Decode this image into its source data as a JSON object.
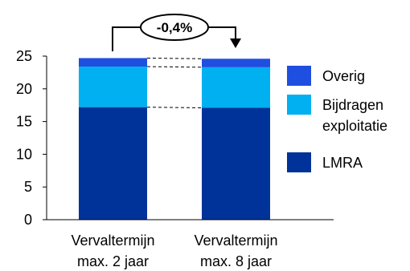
{
  "chart_data": {
    "type": "bar",
    "stacked": true,
    "categories": [
      "Vervaltermijn max. 2 jaar",
      "Vervaltermijn max. 8 jaar"
    ],
    "category_label_lines": [
      [
        "Vervaltermijn",
        "max. 2 jaar"
      ],
      [
        "Vervaltermijn",
        "max. 8 jaar"
      ]
    ],
    "series": [
      {
        "name": "LMRA",
        "values": [
          17.2,
          17.1
        ],
        "color": "#003399"
      },
      {
        "name": "Bijdragen exploitatie",
        "values": [
          6.2,
          6.2
        ],
        "color": "#00b0f0"
      },
      {
        "name": "Overig",
        "values": [
          1.3,
          1.3
        ],
        "color": "#1f4fe0"
      }
    ],
    "legend_order": [
      "Overig",
      "Bijdragen exploitatie",
      "LMRA"
    ],
    "legend_label_lines": {
      "Overig": [
        "Overig"
      ],
      "Bijdragen exploitatie": [
        "Bijdragen",
        "exploitatie"
      ],
      "LMRA": [
        "LMRA"
      ]
    },
    "yticks": [
      0,
      5,
      10,
      15,
      20,
      25
    ],
    "ylim": [
      0,
      25
    ],
    "annotation": "-0,4%",
    "connector_lines": "dashed",
    "legend_position": "right",
    "grid": false,
    "title": "",
    "xlabel": "",
    "ylabel": ""
  }
}
